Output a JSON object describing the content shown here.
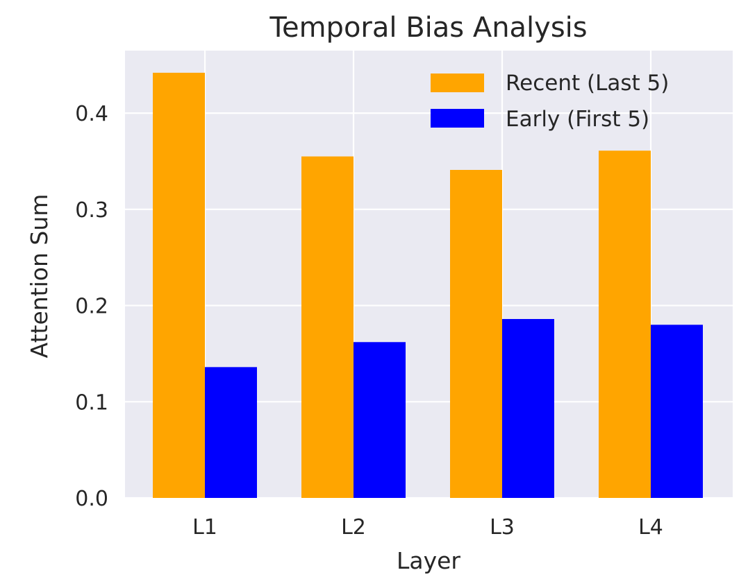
{
  "chart_data": {
    "type": "bar",
    "title": "Temporal Bias Analysis",
    "xlabel": "Layer",
    "ylabel": "Attention Sum",
    "categories": [
      "L1",
      "L2",
      "L3",
      "L4"
    ],
    "series": [
      {
        "name": "Recent (Last 5)",
        "color": "#FFA500",
        "values": [
          0.442,
          0.355,
          0.341,
          0.361
        ]
      },
      {
        "name": "Early (First 5)",
        "color": "#0000FF",
        "values": [
          0.136,
          0.162,
          0.186,
          0.18
        ]
      }
    ],
    "ylim": [
      0,
      0.465
    ],
    "yticks": [
      "0.0",
      "0.1",
      "0.2",
      "0.3",
      "0.4"
    ],
    "grid": true,
    "legend_position": "top-right",
    "background_color": "#EAEAF2"
  }
}
